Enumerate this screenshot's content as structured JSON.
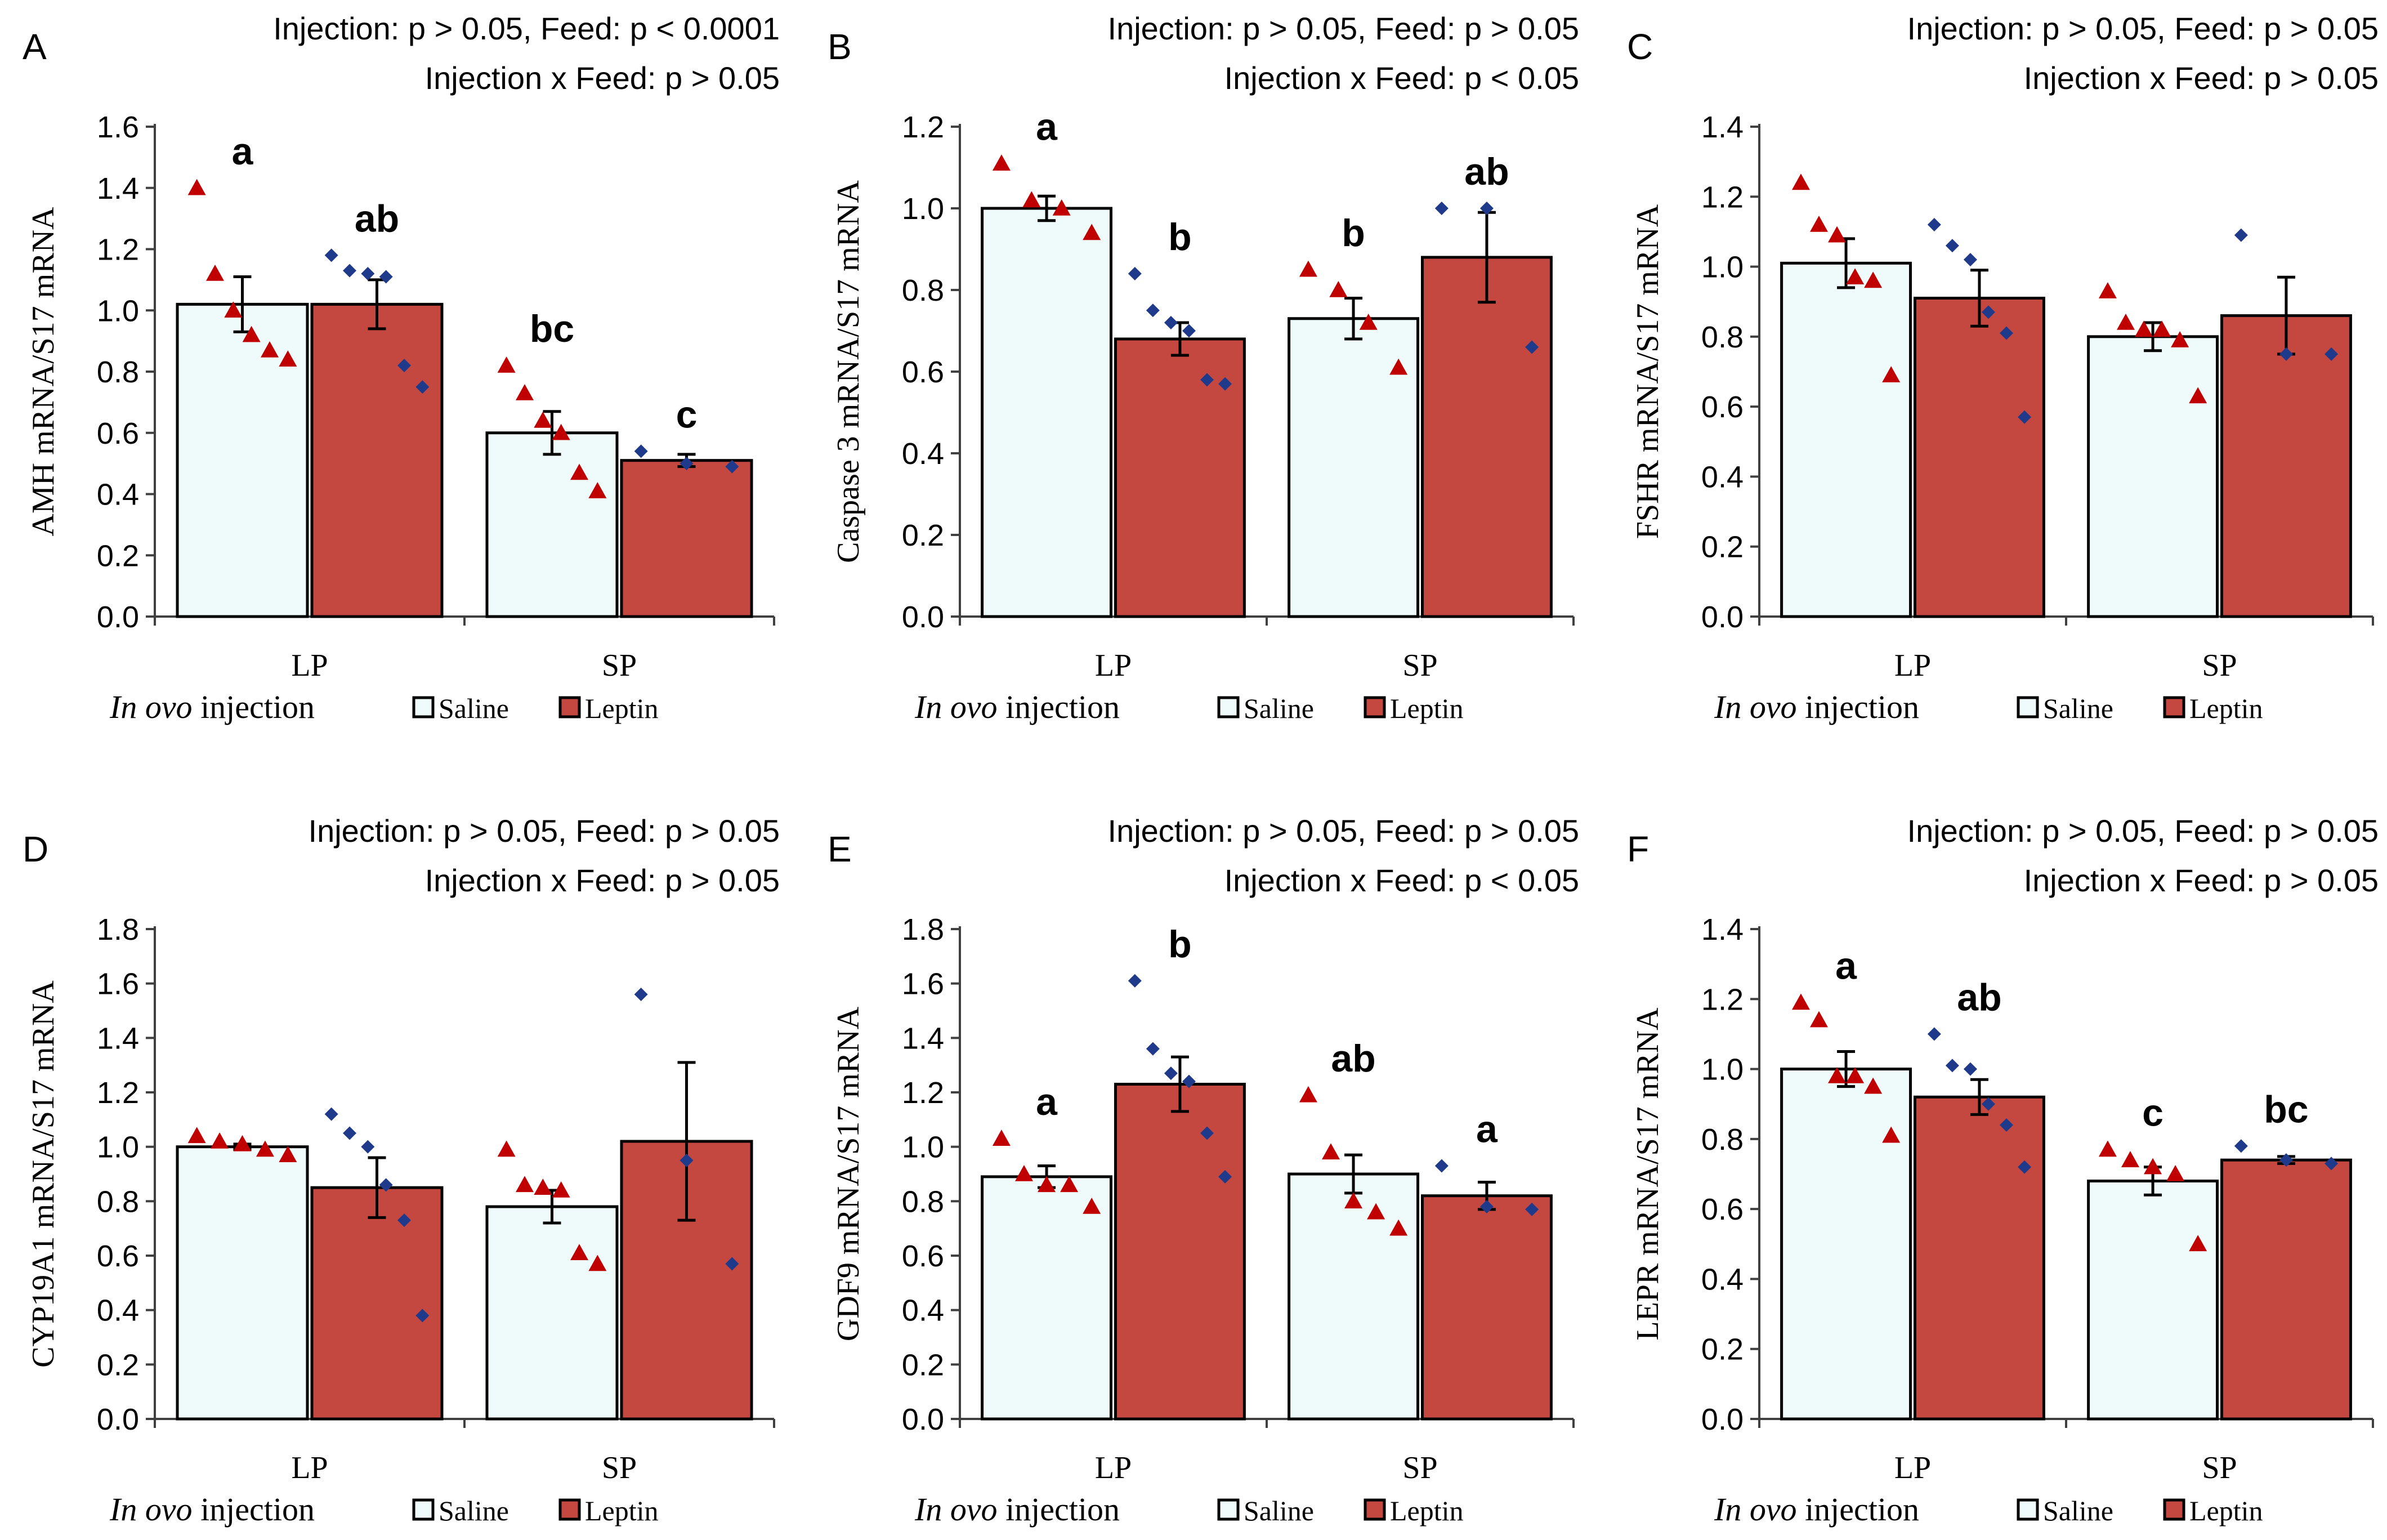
{
  "colors": {
    "saline_fill": "#effbfb",
    "leptin_fill": "#c44840",
    "axis": "#404040",
    "saline_point": "#c00000",
    "leptin_point": "#1f3a8a",
    "text": "#000000"
  },
  "legend": {
    "title_italic": "In ovo",
    "title_rest": " injection",
    "saline": "Saline",
    "leptin": "Leptin"
  },
  "chart_data": [
    {
      "type": "bar",
      "panel": "A",
      "stats_line1": "Injection: p > 0.05, Feed: p < 0.0001",
      "stats_line2": "Injection x Feed: p > 0.05",
      "ylabel": "AMH mRNA/S17 mRNA",
      "ylim": [
        0,
        1.6
      ],
      "ytick_step": 0.2,
      "yticks": [
        "0.0",
        "0.2",
        "0.4",
        "0.6",
        "0.8",
        "1.0",
        "1.2",
        "1.4",
        "1.6"
      ],
      "categories": [
        "LP",
        "SP"
      ],
      "series": [
        {
          "name": "Saline",
          "values": [
            1.02,
            0.6
          ],
          "errors": [
            0.09,
            0.07
          ],
          "letters": [
            "a",
            "bc"
          ],
          "points": [
            [
              1.4,
              1.12,
              1.0,
              0.92,
              0.87,
              0.84
            ],
            [
              0.82,
              0.73,
              0.64,
              0.6,
              0.47,
              0.41
            ]
          ]
        },
        {
          "name": "Leptin",
          "values": [
            1.02,
            0.51
          ],
          "errors": [
            0.08,
            0.02
          ],
          "letters": [
            "ab",
            "c"
          ],
          "points": [
            [
              1.18,
              1.13,
              1.12,
              1.11,
              0.82,
              0.75
            ],
            [
              0.54,
              0.5,
              0.49
            ]
          ]
        }
      ]
    },
    {
      "type": "bar",
      "panel": "B",
      "stats_line1": "Injection: p > 0.05, Feed: p > 0.05",
      "stats_line2": "Injection x Feed: p < 0.05",
      "ylabel": "Caspase 3 mRNA/S17 mRNA",
      "ylim": [
        0,
        1.2
      ],
      "ytick_step": 0.2,
      "yticks": [
        "0.0",
        "0.2",
        "0.4",
        "0.6",
        "0.8",
        "1.0",
        "1.2"
      ],
      "categories": [
        "LP",
        "SP"
      ],
      "series": [
        {
          "name": "Saline",
          "values": [
            1.0,
            0.73
          ],
          "errors": [
            0.03,
            0.05
          ],
          "letters": [
            "a",
            "b"
          ],
          "points": [
            [
              1.11,
              1.02,
              1.0,
              0.94
            ],
            [
              0.85,
              0.8,
              0.72,
              0.61
            ]
          ]
        },
        {
          "name": "Leptin",
          "values": [
            0.68,
            0.88
          ],
          "errors": [
            0.04,
            0.11
          ],
          "letters": [
            "b",
            "ab"
          ],
          "points": [
            [
              0.84,
              0.75,
              0.72,
              0.7,
              0.58,
              0.57
            ],
            [
              1.0,
              1.0,
              0.66
            ]
          ]
        }
      ]
    },
    {
      "type": "bar",
      "panel": "C",
      "stats_line1": "Injection: p > 0.05, Feed: p > 0.05",
      "stats_line2": "Injection x Feed: p > 0.05",
      "ylabel": "FSHR mRNA/S17 mRNA",
      "ylim": [
        0,
        1.4
      ],
      "ytick_step": 0.2,
      "yticks": [
        "0.0",
        "0.2",
        "0.4",
        "0.6",
        "0.8",
        "1.0",
        "1.2",
        "1.4"
      ],
      "categories": [
        "LP",
        "SP"
      ],
      "series": [
        {
          "name": "Saline",
          "values": [
            1.01,
            0.8
          ],
          "errors": [
            0.07,
            0.04
          ],
          "letters": [
            "",
            ""
          ],
          "points": [
            [
              1.24,
              1.12,
              1.09,
              0.97,
              0.96,
              0.69
            ],
            [
              0.93,
              0.84,
              0.82,
              0.82,
              0.79,
              0.63
            ]
          ]
        },
        {
          "name": "Leptin",
          "values": [
            0.91,
            0.86
          ],
          "errors": [
            0.08,
            0.11
          ],
          "letters": [
            "",
            ""
          ],
          "points": [
            [
              1.12,
              1.06,
              1.02,
              0.87,
              0.81,
              0.57
            ],
            [
              1.09,
              0.75,
              0.75
            ]
          ]
        }
      ]
    },
    {
      "type": "bar",
      "panel": "D",
      "stats_line1": "Injection: p > 0.05, Feed: p > 0.05",
      "stats_line2": "Injection x Feed: p > 0.05",
      "ylabel": "CYP19A1 mRNA/S17 mRNA",
      "ylim": [
        0,
        1.8
      ],
      "ytick_step": 0.2,
      "yticks": [
        "0.0",
        "0.2",
        "0.4",
        "0.6",
        "0.8",
        "1.0",
        "1.2",
        "1.4",
        "1.6",
        "1.8"
      ],
      "categories": [
        "LP",
        "SP"
      ],
      "series": [
        {
          "name": "Saline",
          "values": [
            1.0,
            0.78
          ],
          "errors": [
            0.01,
            0.06
          ],
          "letters": [
            "",
            ""
          ],
          "points": [
            [
              1.04,
              1.02,
              1.01,
              0.99,
              0.97
            ],
            [
              0.99,
              0.86,
              0.85,
              0.84,
              0.61,
              0.57
            ]
          ]
        },
        {
          "name": "Leptin",
          "values": [
            0.85,
            1.02
          ],
          "errors": [
            0.11,
            0.29
          ],
          "letters": [
            "",
            ""
          ],
          "points": [
            [
              1.12,
              1.05,
              1.0,
              0.86,
              0.73,
              0.38
            ],
            [
              1.56,
              0.95,
              0.57
            ]
          ]
        }
      ]
    },
    {
      "type": "bar",
      "panel": "E",
      "stats_line1": "Injection: p > 0.05, Feed: p > 0.05",
      "stats_line2": "Injection x Feed: p < 0.05",
      "ylabel": "GDF9 mRNA/S17 mRNA",
      "ylim": [
        0,
        1.8
      ],
      "ytick_step": 0.2,
      "yticks": [
        "0.0",
        "0.2",
        "0.4",
        "0.6",
        "0.8",
        "1.0",
        "1.2",
        "1.4",
        "1.6",
        "1.8"
      ],
      "categories": [
        "LP",
        "SP"
      ],
      "series": [
        {
          "name": "Saline",
          "values": [
            0.89,
            0.9
          ],
          "errors": [
            0.04,
            0.07
          ],
          "letters": [
            "a",
            "ab"
          ],
          "points": [
            [
              1.03,
              0.9,
              0.86,
              0.86,
              0.78
            ],
            [
              1.19,
              0.98,
              0.8,
              0.76,
              0.7
            ]
          ]
        },
        {
          "name": "Leptin",
          "values": [
            1.23,
            0.82
          ],
          "errors": [
            0.1,
            0.05
          ],
          "letters": [
            "b",
            "a"
          ],
          "points": [
            [
              1.61,
              1.36,
              1.27,
              1.24,
              1.05,
              0.89
            ],
            [
              0.93,
              0.78,
              0.77
            ]
          ]
        }
      ]
    },
    {
      "type": "bar",
      "panel": "F",
      "stats_line1": "Injection: p > 0.05, Feed: p > 0.05",
      "stats_line2": "Injection x Feed: p > 0.05",
      "ylabel": "LEPR mRNA/S17 mRNA",
      "ylim": [
        0,
        1.4
      ],
      "ytick_step": 0.2,
      "yticks": [
        "0.0",
        "0.2",
        "0.4",
        "0.6",
        "0.8",
        "1.0",
        "1.2",
        "1.4"
      ],
      "categories": [
        "LP",
        "SP"
      ],
      "series": [
        {
          "name": "Saline",
          "values": [
            1.0,
            0.68
          ],
          "errors": [
            0.05,
            0.04
          ],
          "letters": [
            "a",
            "c"
          ],
          "points": [
            [
              1.19,
              1.14,
              0.98,
              0.98,
              0.95,
              0.81
            ],
            [
              0.77,
              0.74,
              0.72,
              0.7,
              0.5
            ]
          ]
        },
        {
          "name": "Leptin",
          "values": [
            0.92,
            0.74
          ],
          "errors": [
            0.05,
            0.01
          ],
          "letters": [
            "ab",
            "bc"
          ],
          "points": [
            [
              1.1,
              1.01,
              1.0,
              0.9,
              0.84,
              0.72
            ],
            [
              0.78,
              0.74,
              0.73
            ]
          ]
        }
      ]
    }
  ]
}
